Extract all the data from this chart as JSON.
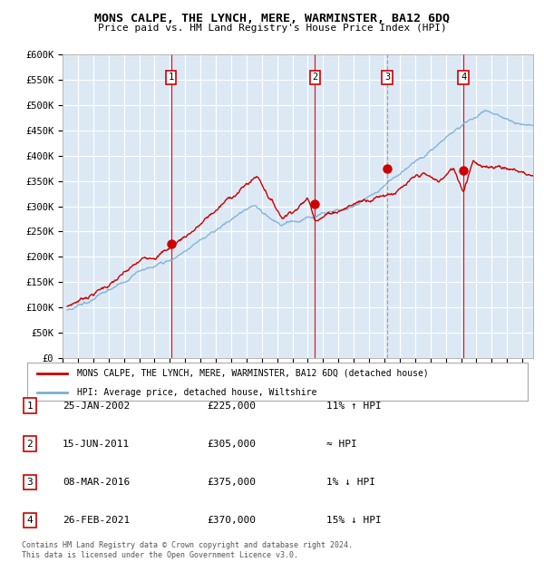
{
  "title": "MONS CALPE, THE LYNCH, MERE, WARMINSTER, BA12 6DQ",
  "subtitle": "Price paid vs. HM Land Registry's House Price Index (HPI)",
  "background_color": "#ffffff",
  "plot_bg_color": "#dce9f5",
  "ylim": [
    0,
    600000
  ],
  "sale_dates": [
    2002.07,
    2011.46,
    2016.18,
    2021.15
  ],
  "sale_prices": [
    225000,
    305000,
    375000,
    370000
  ],
  "sale_labels": [
    "1",
    "2",
    "3",
    "4"
  ],
  "vline_colors": [
    "#cc0000",
    "#cc0000",
    "#999999",
    "#cc0000"
  ],
  "vline_styles": [
    "-",
    "-",
    "--",
    "-"
  ],
  "legend_house_label": "MONS CALPE, THE LYNCH, MERE, WARMINSTER, BA12 6DQ (detached house)",
  "legend_hpi_label": "HPI: Average price, detached house, Wiltshire",
  "house_line_color": "#cc0000",
  "hpi_line_color": "#7bafd4",
  "footer_text": "Contains HM Land Registry data © Crown copyright and database right 2024.\nThis data is licensed under the Open Government Licence v3.0.",
  "table_rows": [
    [
      "1",
      "25-JAN-2002",
      "£225,000",
      "11% ↑ HPI"
    ],
    [
      "2",
      "15-JUN-2011",
      "£305,000",
      "≈ HPI"
    ],
    [
      "3",
      "08-MAR-2016",
      "£375,000",
      "1% ↓ HPI"
    ],
    [
      "4",
      "26-FEB-2021",
      "£370,000",
      "15% ↓ HPI"
    ]
  ],
  "ytick_vals": [
    0,
    50000,
    100000,
    150000,
    200000,
    250000,
    300000,
    350000,
    400000,
    450000,
    500000,
    550000,
    600000
  ],
  "ytick_labels": [
    "£0",
    "£50K",
    "£100K",
    "£150K",
    "£200K",
    "£250K",
    "£300K",
    "£350K",
    "£400K",
    "£450K",
    "£500K",
    "£550K",
    "£600K"
  ],
  "xtick_start": 1995,
  "xtick_end": 2026,
  "xlim": [
    1995.3,
    2025.7
  ]
}
